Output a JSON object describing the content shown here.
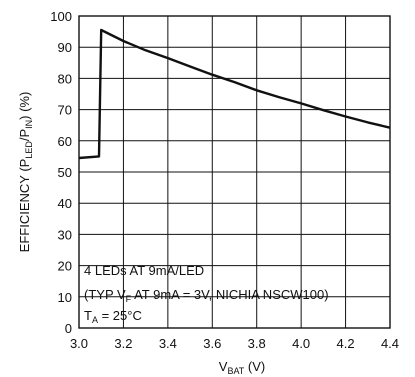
{
  "chart_data": {
    "type": "line",
    "xlabel": {
      "main": "V",
      "sub": "BAT",
      "unit": " (V)"
    },
    "ylabel": {
      "p1": "EFFICIENCY (P",
      "sub1": "LED",
      "p2": "/P",
      "sub2": "IN",
      "p3": ") (%)"
    },
    "xlim": [
      3.0,
      4.4
    ],
    "ylim": [
      0,
      100
    ],
    "x_ticks": [
      "3.0",
      "3.2",
      "3.4",
      "3.6",
      "3.8",
      "4.0",
      "4.2",
      "4.4"
    ],
    "y_ticks": [
      "0",
      "10",
      "20",
      "30",
      "40",
      "50",
      "60",
      "70",
      "80",
      "90",
      "100"
    ],
    "grid": true,
    "annotation": {
      "line1": "4 LEDs AT 9mA/LED",
      "line2a": "(TYP V",
      "line2sub": "F",
      "line2b": " AT 9mA = 3V, NICHIA NSCW100)",
      "line3a": "T",
      "line3sub": "A",
      "line3b": " = 25°C"
    },
    "series": [
      {
        "x": [
          3.0,
          3.09,
          3.09,
          3.1,
          3.2,
          3.3,
          3.4,
          3.5,
          3.6,
          3.7,
          3.8,
          3.9,
          4.0,
          4.1,
          4.2,
          4.3,
          4.4
        ],
        "y": [
          54.5,
          55,
          55,
          95.5,
          92,
          89,
          86.5,
          83.8,
          81.2,
          78.8,
          76.2,
          74,
          72,
          69.8,
          67.8,
          65.9,
          64.2
        ]
      }
    ]
  }
}
